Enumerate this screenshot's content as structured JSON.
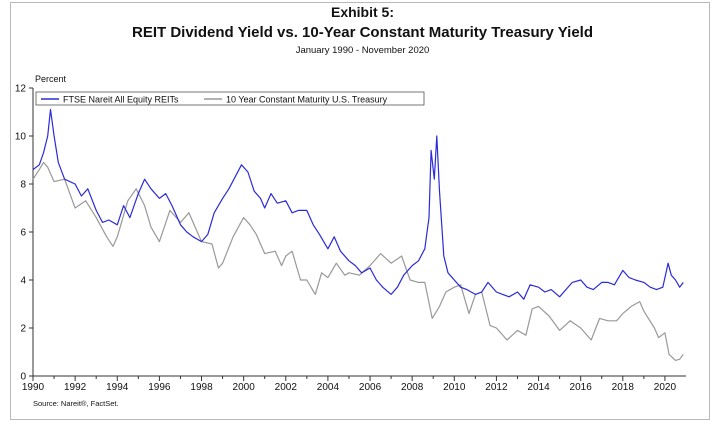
{
  "header": {
    "exhibit": "Exhibit 5:",
    "title": "REIT Dividend Yield vs. 10-Year Constant Maturity Treasury Yield",
    "subtitle": "January 1990 - November 2020"
  },
  "source": "Source: Nareit®, FactSet.",
  "chart_data": {
    "type": "line",
    "title": "REIT Dividend Yield vs. 10-Year Constant Maturity Treasury Yield",
    "subtitle": "January 1990 - November 2020",
    "ylabel": "Percent",
    "xlim": [
      1990,
      2021
    ],
    "ylim": [
      0,
      12
    ],
    "x_ticks": [
      "1990",
      "1992",
      "1994",
      "1996",
      "1998",
      "2000",
      "2002",
      "2004",
      "2006",
      "2008",
      "2010",
      "2012",
      "2014",
      "2016",
      "2018",
      "2020"
    ],
    "y_ticks": [
      "0",
      "2",
      "4",
      "6",
      "8",
      "10",
      "12"
    ],
    "legend_position": "top-left",
    "series": [
      {
        "name": "FTSE Nareit All Equity REITs",
        "color": "#2b2bd9",
        "points": [
          [
            1990.0,
            8.6
          ],
          [
            1990.3,
            8.8
          ],
          [
            1990.5,
            9.3
          ],
          [
            1990.7,
            10.0
          ],
          [
            1990.83,
            11.1
          ],
          [
            1991.0,
            10.0
          ],
          [
            1991.2,
            8.9
          ],
          [
            1991.5,
            8.2
          ],
          [
            1992.0,
            8.0
          ],
          [
            1992.3,
            7.5
          ],
          [
            1992.6,
            7.8
          ],
          [
            1993.0,
            6.9
          ],
          [
            1993.3,
            6.4
          ],
          [
            1993.6,
            6.5
          ],
          [
            1994.0,
            6.3
          ],
          [
            1994.3,
            7.1
          ],
          [
            1994.6,
            6.6
          ],
          [
            1995.0,
            7.6
          ],
          [
            1995.3,
            8.2
          ],
          [
            1995.6,
            7.8
          ],
          [
            1996.0,
            7.4
          ],
          [
            1996.3,
            7.6
          ],
          [
            1996.6,
            7.1
          ],
          [
            1997.0,
            6.3
          ],
          [
            1997.3,
            6.0
          ],
          [
            1997.6,
            5.8
          ],
          [
            1998.0,
            5.6
          ],
          [
            1998.3,
            5.9
          ],
          [
            1998.6,
            6.8
          ],
          [
            1999.0,
            7.4
          ],
          [
            1999.3,
            7.8
          ],
          [
            1999.6,
            8.3
          ],
          [
            1999.9,
            8.8
          ],
          [
            2000.2,
            8.5
          ],
          [
            2000.5,
            7.7
          ],
          [
            2000.8,
            7.4
          ],
          [
            2001.0,
            7.0
          ],
          [
            2001.3,
            7.6
          ],
          [
            2001.6,
            7.2
          ],
          [
            2002.0,
            7.3
          ],
          [
            2002.3,
            6.8
          ],
          [
            2002.6,
            6.9
          ],
          [
            2003.0,
            6.9
          ],
          [
            2003.3,
            6.3
          ],
          [
            2003.6,
            5.9
          ],
          [
            2004.0,
            5.3
          ],
          [
            2004.3,
            5.8
          ],
          [
            2004.6,
            5.2
          ],
          [
            2005.0,
            4.8
          ],
          [
            2005.3,
            4.6
          ],
          [
            2005.6,
            4.3
          ],
          [
            2006.0,
            4.5
          ],
          [
            2006.3,
            4.0
          ],
          [
            2006.6,
            3.7
          ],
          [
            2007.0,
            3.4
          ],
          [
            2007.3,
            3.7
          ],
          [
            2007.6,
            4.2
          ],
          [
            2008.0,
            4.6
          ],
          [
            2008.3,
            4.8
          ],
          [
            2008.6,
            5.3
          ],
          [
            2008.8,
            6.6
          ],
          [
            2008.9,
            9.4
          ],
          [
            2009.05,
            8.2
          ],
          [
            2009.17,
            10.0
          ],
          [
            2009.3,
            7.7
          ],
          [
            2009.5,
            5.0
          ],
          [
            2009.7,
            4.3
          ],
          [
            2010.0,
            4.0
          ],
          [
            2010.3,
            3.7
          ],
          [
            2010.6,
            3.6
          ],
          [
            2011.0,
            3.4
          ],
          [
            2011.3,
            3.5
          ],
          [
            2011.6,
            3.9
          ],
          [
            2012.0,
            3.5
          ],
          [
            2012.3,
            3.4
          ],
          [
            2012.6,
            3.3
          ],
          [
            2013.0,
            3.5
          ],
          [
            2013.3,
            3.2
          ],
          [
            2013.6,
            3.8
          ],
          [
            2014.0,
            3.7
          ],
          [
            2014.3,
            3.5
          ],
          [
            2014.6,
            3.6
          ],
          [
            2015.0,
            3.3
          ],
          [
            2015.3,
            3.6
          ],
          [
            2015.6,
            3.9
          ],
          [
            2016.0,
            4.0
          ],
          [
            2016.3,
            3.7
          ],
          [
            2016.6,
            3.6
          ],
          [
            2017.0,
            3.9
          ],
          [
            2017.3,
            3.9
          ],
          [
            2017.6,
            3.8
          ],
          [
            2018.0,
            4.4
          ],
          [
            2018.3,
            4.1
          ],
          [
            2018.6,
            4.0
          ],
          [
            2019.0,
            3.9
          ],
          [
            2019.3,
            3.7
          ],
          [
            2019.6,
            3.6
          ],
          [
            2019.9,
            3.7
          ],
          [
            2020.15,
            4.7
          ],
          [
            2020.3,
            4.2
          ],
          [
            2020.5,
            4.0
          ],
          [
            2020.7,
            3.7
          ],
          [
            2020.87,
            3.9
          ]
        ]
      },
      {
        "name": "10 Year Constant Maturity U.S. Treasury",
        "color": "#999999",
        "points": [
          [
            1990.0,
            8.2
          ],
          [
            1990.3,
            8.6
          ],
          [
            1990.5,
            8.9
          ],
          [
            1990.7,
            8.7
          ],
          [
            1991.0,
            8.1
          ],
          [
            1991.5,
            8.2
          ],
          [
            1992.0,
            7.0
          ],
          [
            1992.5,
            7.3
          ],
          [
            1993.0,
            6.6
          ],
          [
            1993.5,
            5.8
          ],
          [
            1993.8,
            5.4
          ],
          [
            1994.0,
            5.8
          ],
          [
            1994.5,
            7.3
          ],
          [
            1994.9,
            7.8
          ],
          [
            1995.3,
            7.1
          ],
          [
            1995.6,
            6.2
          ],
          [
            1996.0,
            5.6
          ],
          [
            1996.5,
            6.9
          ],
          [
            1997.0,
            6.4
          ],
          [
            1997.4,
            6.8
          ],
          [
            1997.8,
            6.0
          ],
          [
            1998.0,
            5.6
          ],
          [
            1998.5,
            5.5
          ],
          [
            1998.8,
            4.5
          ],
          [
            1999.0,
            4.7
          ],
          [
            1999.5,
            5.8
          ],
          [
            2000.0,
            6.6
          ],
          [
            2000.3,
            6.3
          ],
          [
            2000.6,
            5.9
          ],
          [
            2001.0,
            5.1
          ],
          [
            2001.5,
            5.2
          ],
          [
            2001.8,
            4.6
          ],
          [
            2002.0,
            5.0
          ],
          [
            2002.3,
            5.2
          ],
          [
            2002.7,
            4.0
          ],
          [
            2003.0,
            4.0
          ],
          [
            2003.4,
            3.4
          ],
          [
            2003.7,
            4.3
          ],
          [
            2004.0,
            4.1
          ],
          [
            2004.4,
            4.7
          ],
          [
            2004.8,
            4.2
          ],
          [
            2005.0,
            4.3
          ],
          [
            2005.5,
            4.2
          ],
          [
            2006.0,
            4.6
          ],
          [
            2006.5,
            5.1
          ],
          [
            2007.0,
            4.7
          ],
          [
            2007.5,
            5.0
          ],
          [
            2007.9,
            4.0
          ],
          [
            2008.3,
            3.9
          ],
          [
            2008.6,
            3.9
          ],
          [
            2008.95,
            2.4
          ],
          [
            2009.3,
            2.9
          ],
          [
            2009.6,
            3.5
          ],
          [
            2010.0,
            3.7
          ],
          [
            2010.3,
            3.8
          ],
          [
            2010.7,
            2.6
          ],
          [
            2011.0,
            3.4
          ],
          [
            2011.3,
            3.5
          ],
          [
            2011.7,
            2.1
          ],
          [
            2012.0,
            2.0
          ],
          [
            2012.5,
            1.5
          ],
          [
            2013.0,
            1.9
          ],
          [
            2013.4,
            1.7
          ],
          [
            2013.7,
            2.8
          ],
          [
            2014.0,
            2.9
          ],
          [
            2014.5,
            2.5
          ],
          [
            2015.0,
            1.9
          ],
          [
            2015.5,
            2.3
          ],
          [
            2016.0,
            2.0
          ],
          [
            2016.5,
            1.5
          ],
          [
            2016.9,
            2.4
          ],
          [
            2017.3,
            2.3
          ],
          [
            2017.7,
            2.3
          ],
          [
            2018.0,
            2.6
          ],
          [
            2018.4,
            2.9
          ],
          [
            2018.8,
            3.1
          ],
          [
            2019.0,
            2.7
          ],
          [
            2019.5,
            2.0
          ],
          [
            2019.7,
            1.6
          ],
          [
            2020.0,
            1.8
          ],
          [
            2020.2,
            0.9
          ],
          [
            2020.5,
            0.65
          ],
          [
            2020.7,
            0.7
          ],
          [
            2020.87,
            0.9
          ]
        ]
      }
    ]
  }
}
